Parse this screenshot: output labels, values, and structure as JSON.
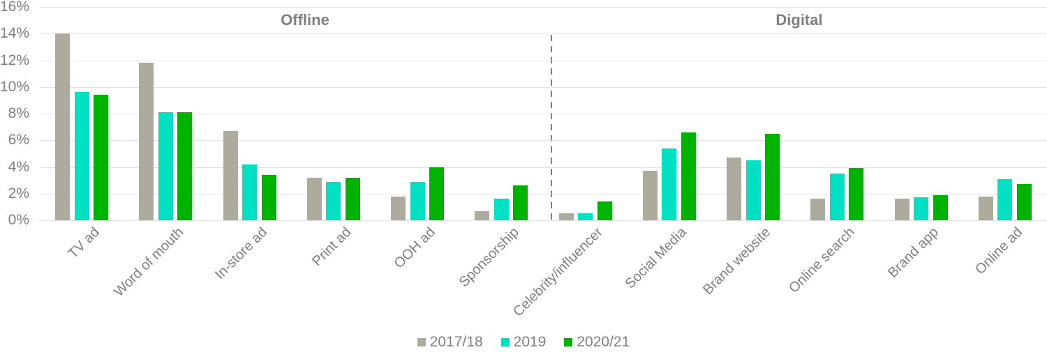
{
  "chart_data": {
    "type": "bar",
    "title": "",
    "xlabel": "",
    "ylabel": "",
    "ylim": [
      0,
      16
    ],
    "grid": true,
    "legend_position": "bottom",
    "yticks": [
      0,
      2,
      4,
      6,
      8,
      10,
      12,
      14,
      16
    ],
    "ytick_labels": [
      "0%",
      "2%",
      "4%",
      "6%",
      "8%",
      "10%",
      "12%",
      "14%",
      "16%"
    ],
    "categories": [
      "TV ad",
      "Word of mouth",
      "In-store ad",
      "Print ad",
      "OOH ad",
      "Sponsorship",
      "Celebrity/influencer",
      "Social Media",
      "Brand website",
      "Online search",
      "Brand app",
      "Online ad"
    ],
    "series": [
      {
        "name": "2017/18",
        "color": "#acab9d",
        "values": [
          14.0,
          11.8,
          6.7,
          3.2,
          1.8,
          0.7,
          0.5,
          3.7,
          4.7,
          1.6,
          1.6,
          1.8
        ]
      },
      {
        "name": "2019",
        "color": "#00e1c3",
        "values": [
          9.6,
          8.1,
          4.2,
          2.9,
          2.9,
          1.6,
          0.5,
          5.4,
          4.5,
          3.5,
          1.7,
          3.1
        ]
      },
      {
        "name": "2020/21",
        "color": "#00b300",
        "values": [
          9.4,
          8.1,
          3.4,
          3.2,
          4.0,
          2.6,
          1.4,
          6.6,
          6.5,
          3.9,
          1.9,
          2.7
        ]
      }
    ],
    "sections": [
      {
        "label": "Offline",
        "from_category": 0,
        "to_category": 5
      },
      {
        "label": "Digital",
        "from_category": 6,
        "to_category": 11
      }
    ],
    "divider": {
      "style": "dashed",
      "color": "#7f7f7f",
      "between": [
        "Sponsorship",
        "Celebrity/influencer"
      ]
    }
  }
}
